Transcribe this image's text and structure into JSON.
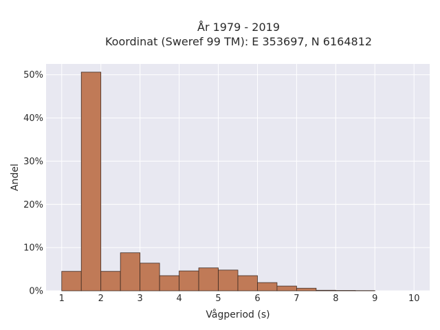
{
  "chart_data": {
    "type": "bar",
    "title_lines": [
      "År 1979 - 2019",
      "Koordinat (Sweref 99 TM): E 353697, N 6164812"
    ],
    "xlabel": "Vågperiod (s)",
    "ylabel": "Andel",
    "bin_edges": [
      1,
      1.5,
      2,
      2.5,
      3,
      3.5,
      4,
      4.5,
      5,
      5.5,
      6,
      6.5,
      7,
      7.5,
      8,
      8.5,
      9
    ],
    "values": [
      4.5,
      50.6,
      4.5,
      8.8,
      6.4,
      3.5,
      4.6,
      5.3,
      4.8,
      3.5,
      1.9,
      1.1,
      0.6,
      0.12,
      0.08,
      0.05
    ],
    "xlim": [
      0.6,
      10.4
    ],
    "ylim": [
      0,
      52.5
    ],
    "x_ticks": [
      1,
      2,
      3,
      4,
      5,
      6,
      7,
      8,
      9,
      10
    ],
    "x_tick_labels": [
      "1",
      "2",
      "3",
      "4",
      "5",
      "6",
      "7",
      "8",
      "9",
      "10"
    ],
    "y_ticks": [
      0,
      10,
      20,
      30,
      40,
      50
    ],
    "y_tick_labels": [
      "0%",
      "10%",
      "20%",
      "30%",
      "40%",
      "50%"
    ],
    "grid": true,
    "legend": false,
    "colors": {
      "bar_fill": "#c07a57",
      "bar_stroke": "#3d2a22",
      "plot_background": "#e8e8f1",
      "grid": "#ffffff"
    }
  }
}
